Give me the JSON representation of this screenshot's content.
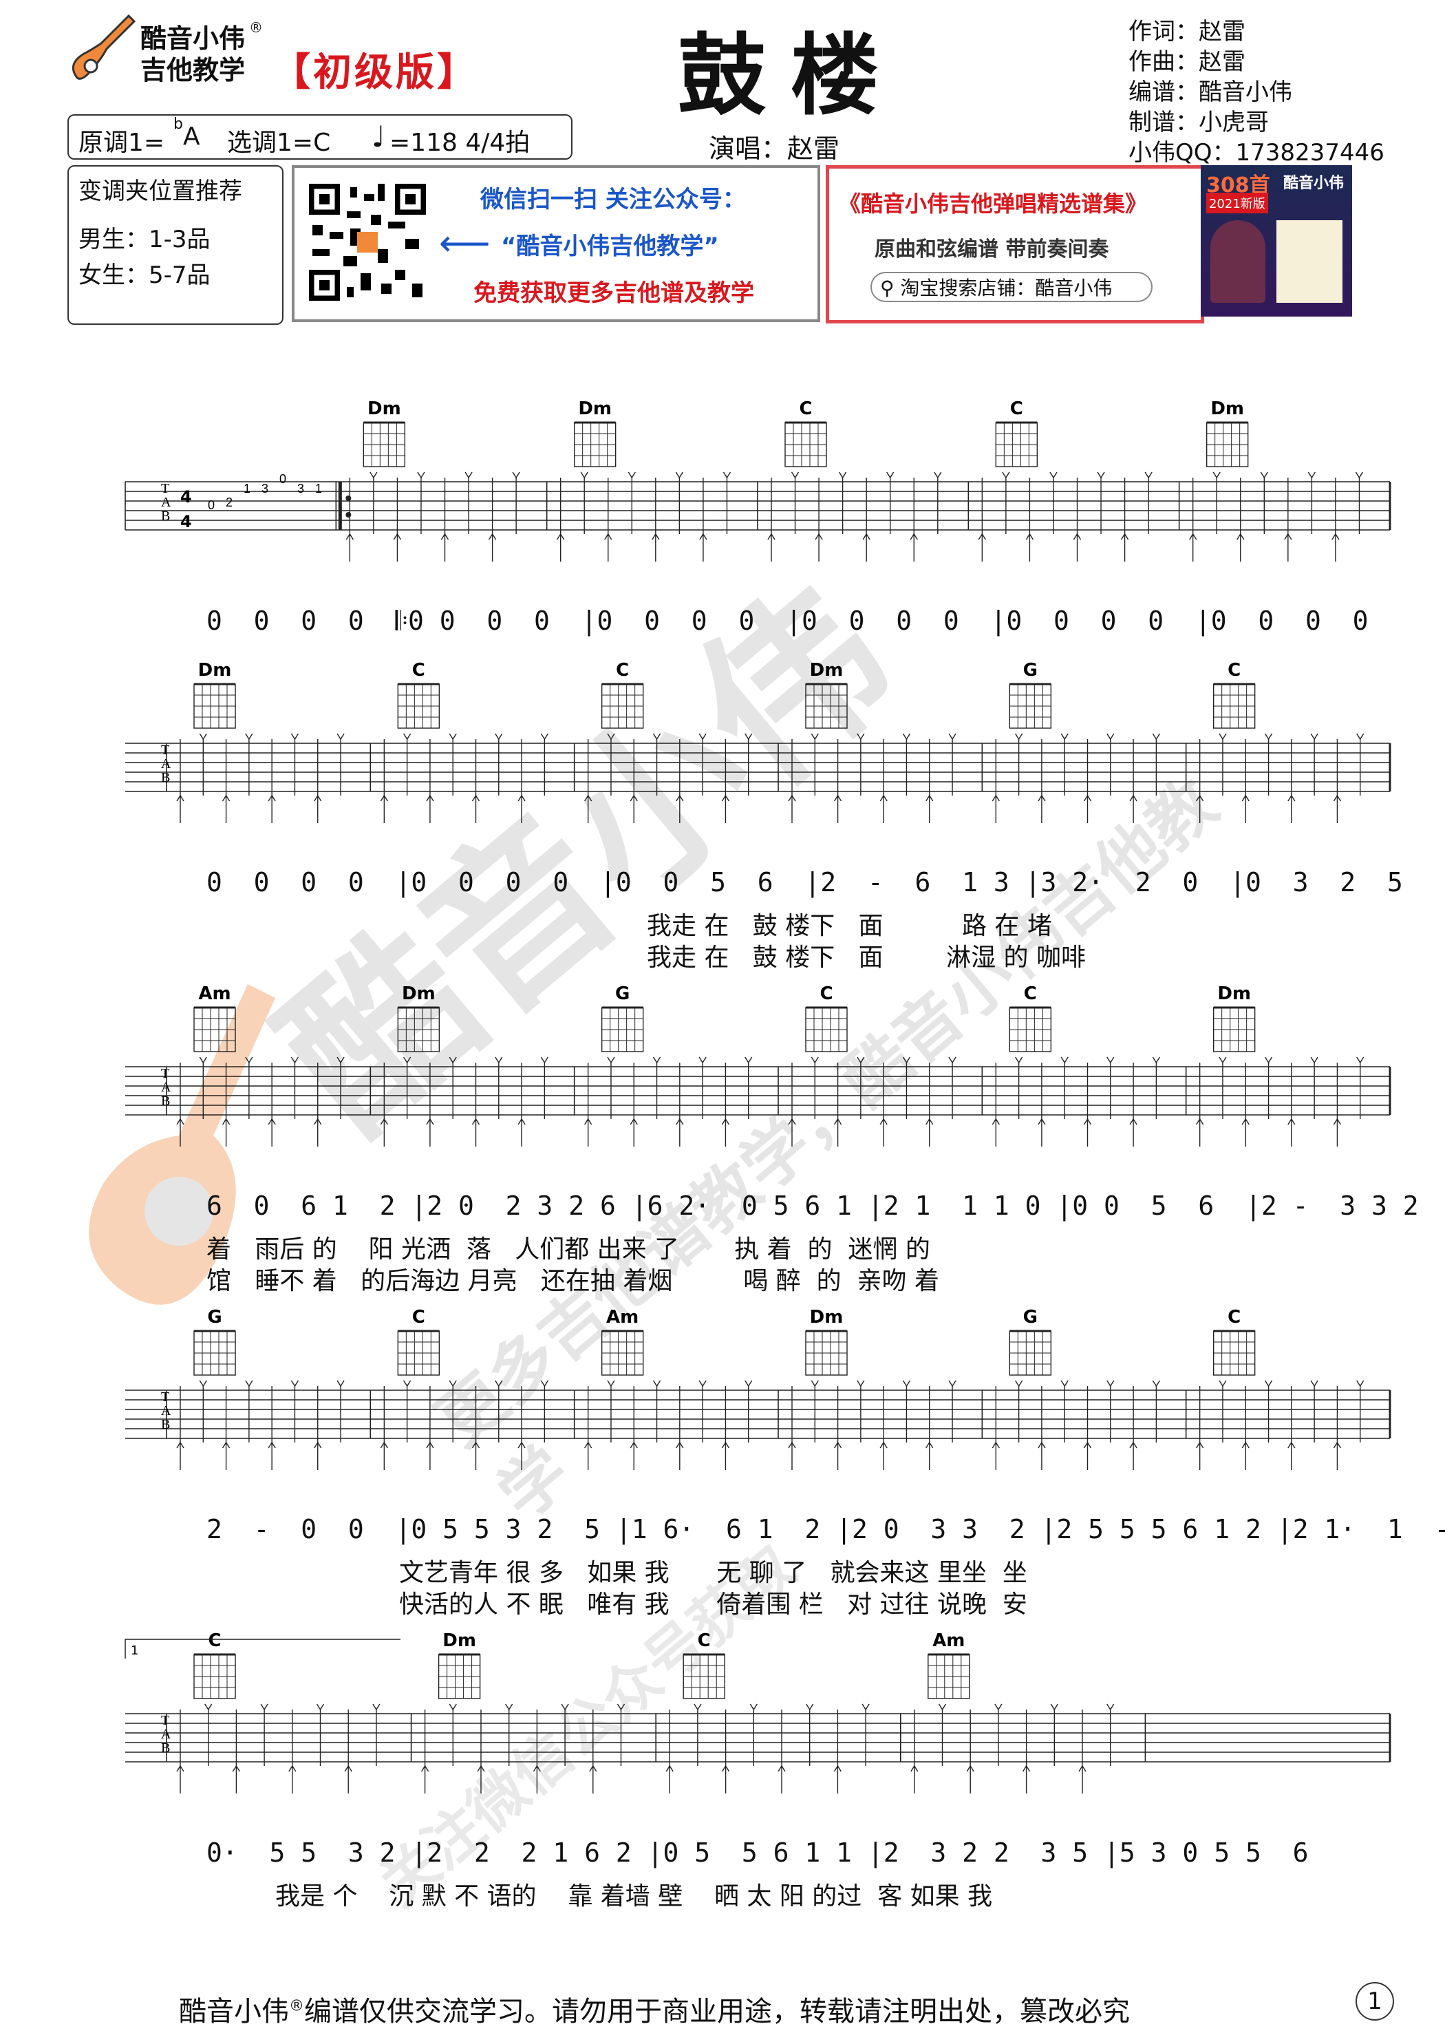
{
  "header": {
    "logo_line1": "酷音小伟",
    "logo_line2": "吉他教学",
    "logo_mark": "®",
    "edition": "【初级版】",
    "title": "鼓楼",
    "singer": "演唱：赵雷",
    "credits": [
      "作词：赵雷",
      "作曲：赵雷",
      "编谱：酷音小伟",
      "制谱：小虎哥",
      "小伟QQ：1738237446"
    ],
    "key_info": {
      "original": "原调1=",
      "original_flat": "b",
      "original_note": "A",
      "selected": "选调1=C",
      "tempo": "=118 4/4拍"
    },
    "capo": {
      "title": "变调夹位置推荐",
      "male": "男生：1-3品",
      "female": "女生：5-7品"
    },
    "wechat": {
      "line1": "微信扫一扫 关注公众号：",
      "line2": "“酷音小伟吉他教学”",
      "line3": "免费获取更多吉他谱及教学"
    },
    "promo": {
      "title": "《酷音小伟吉他弹唱精选谱集》",
      "subtitle": "原曲和弦编谱  带前奏间奏",
      "search": "淘宝搜索店铺：酷音小伟",
      "badge_num": "308首",
      "badge_year": "2021新版",
      "book_brand": "酷音小伟"
    }
  },
  "systems": [
    {
      "chords": [
        "Dm",
        "Dm",
        "C",
        "C",
        "Dm"
      ],
      "jianpu": "0  0  0  0  𝄆0 0  0  0  |0  0  0  0  |0  0  0  0  |0  0  0  0  |0  0  0  0",
      "lyrics": [],
      "intro_tab": [
        "0",
        "2",
        "1",
        "3",
        "0",
        "3",
        "1"
      ]
    },
    {
      "chords": [
        "Dm",
        "C",
        "C",
        "Dm",
        "G",
        "C"
      ],
      "jianpu": "0  0  0  0  |0  0  0  0  |0  0  5  6  |2  -  6  1 3 |3 2·  2  0  |0  3  2  5",
      "lyrics": [
        "我走 在   鼓 楼下   面          路 在 堵",
        "我走 在   鼓 楼下   面        淋湿 的 咖啡"
      ]
    },
    {
      "chords": [
        "Am",
        "Dm",
        "G",
        "C",
        "C",
        "Dm"
      ],
      "jianpu": "6  0  6 1  2 |2 0  2 3 2 6 |6 2·  0 5 6 1 |2 1  1 1 0 |0 0  5  6  |2 -  3 3 2",
      "lyrics": [
        "着   雨后 的    阳 光洒  落   人们都 出来 了       执 着  的  迷惘 的",
        "馆   睡不 着   的后海边 月亮   还在抽 着烟         喝 醉  的  亲吻 着"
      ]
    },
    {
      "chords": [
        "G",
        "C",
        "Am",
        "Dm",
        "G",
        "C"
      ],
      "jianpu": "2  -  0  0  |0 5 5 3 2  5 |1 6·  6 1  2 |2 0  3 3  2 |2 5 5 5 6 1 2 |2 1·  1  -",
      "lyrics": [
        "文艺青年 很 多   如果 我      无 聊 了   就会来这 里坐  坐",
        "快活的人 不 眠   唯有 我      倚着围 栏   对 过往 说晚  安"
      ]
    },
    {
      "chords": [
        "C",
        "Dm",
        "C",
        "Am"
      ],
      "jianpu": "0·  5 5  3 2 |2  2  2 1 6 2 |0 5  5 6 1 1 |2  3 2 2  3 5 |5 3 0 5 5  6",
      "lyrics": [
        "我是 个    沉 默 不 语的    靠 着墙 壁    晒 太 阳 的过  客 如果 我"
      ],
      "volta": "1"
    }
  ],
  "watermarks": [
    "酷音小伟",
    "更多吉他谱教学，酷音小伟吉他教学",
    "关注微信公众号获取"
  ],
  "footer": {
    "text": "酷音小伟",
    "mark": "®",
    "rest": "编谱仅供交流学习。请勿用于商业用途，转载请注明出处，篡改必究",
    "page": "1"
  },
  "colors": {
    "red": "#d8181e",
    "blue": "#1a56c8",
    "orange": "#f08a3a"
  }
}
